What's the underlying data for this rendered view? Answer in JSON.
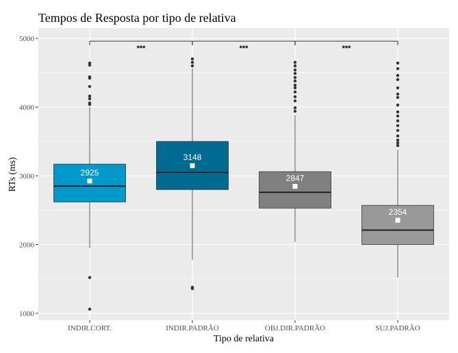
{
  "chart_data": {
    "type": "box",
    "title": "Tempos de Resposta por tipo de relativa",
    "xlabel": "Tipo de relativa",
    "ylabel": "RTs (ms)",
    "ylim": [
      900,
      5150
    ],
    "yticks": [
      "1000",
      "2000",
      "3000",
      "4000",
      "5000"
    ],
    "grid": true,
    "categories": [
      "INDIR.CORT.",
      "INDIR.PADRÃO",
      "OBJ.DIR.PADRÃO",
      "SUJ.PADRÃO"
    ],
    "boxes": [
      {
        "category": "INDIR.CORT.",
        "color": "#0099cc",
        "whisker_low": 1950,
        "q1": 2620,
        "median": 2850,
        "q3": 3170,
        "whisker_high": 4000,
        "mean": 2925,
        "mean_label": "2925",
        "outliers": [
          1060,
          1520,
          4040,
          4060,
          4120,
          4160,
          4300,
          4420,
          4440,
          4610,
          4640
        ]
      },
      {
        "category": "INDIR.PADRÃO",
        "color": "#006b91",
        "whisker_low": 1780,
        "q1": 2800,
        "median": 3050,
        "q3": 3500,
        "whisker_high": 4560,
        "mean": 3148,
        "mean_label": "3148",
        "outliers": [
          1360,
          1380,
          4600,
          4650,
          4700
        ]
      },
      {
        "category": "OBJ.DIR.PADRÃO",
        "color": "#808080",
        "whisker_low": 2040,
        "q1": 2530,
        "median": 2760,
        "q3": 3060,
        "whisker_high": 3880,
        "mean": 2847,
        "mean_label": "2847",
        "outliers": [
          3940,
          3990,
          4090,
          4150,
          4220,
          4280,
          4320,
          4380,
          4430,
          4490,
          4540,
          4600,
          4650
        ]
      },
      {
        "category": "SUJ.PADRÃO",
        "color": "#999999",
        "whisker_low": 1520,
        "q1": 2000,
        "median": 2210,
        "q3": 2570,
        "whisker_high": 3380,
        "mean": 2354,
        "mean_label": "2354",
        "outliers": [
          3440,
          3480,
          3520,
          3580,
          3660,
          3730,
          3800,
          3870,
          3930,
          4030,
          4140,
          4190,
          4280,
          4400,
          4460,
          4560,
          4640
        ]
      }
    ],
    "significance": [
      {
        "from": 0,
        "to": 1,
        "label": "***"
      },
      {
        "from": 1,
        "to": 2,
        "label": "***"
      },
      {
        "from": 2,
        "to": 3,
        "label": "***"
      }
    ],
    "significance_y": 4960
  }
}
